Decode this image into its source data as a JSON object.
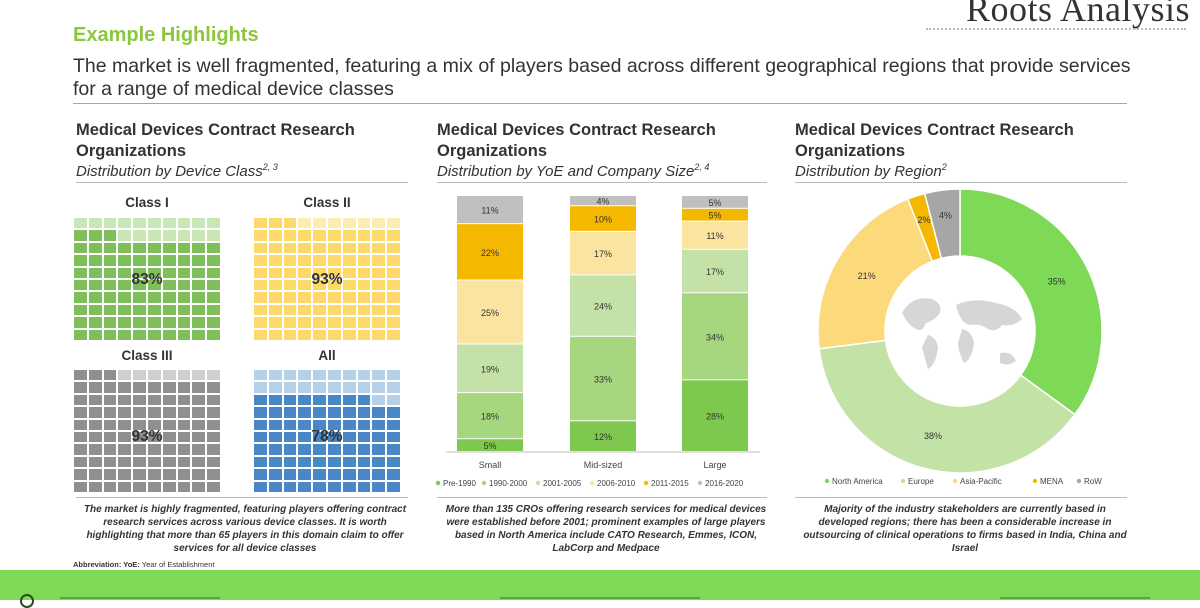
{
  "logo": {
    "text": "Roots Analysis",
    "tagline": ""
  },
  "header": {
    "heading": "Example Highlights",
    "subtitle": "The market is well fragmented, featuring a mix of players based across different geographical regions that provide services for a range of medical device classes"
  },
  "panels": [
    {
      "title": "Medical Devices Contract Research Organizations",
      "caption": "Distribution by Device Class",
      "caption_sup": "2, 3",
      "footnote": "The market is highly fragmented, featuring players offering contract research services across various device classes. It is worth highlighting that more than 65 players in this domain claim to offer services for all device classes"
    },
    {
      "title": "Medical Devices Contract Research Organizations",
      "caption": "Distribution by YoE and Company Size",
      "caption_sup": "2, 4",
      "footnote": "More than 135 CROs offering research services for medical devices were established before 2001; prominent examples of large players based in North America include CATO Research, Emmes, ICON, LabCorp and Medpace"
    },
    {
      "title": "Medical Devices Contract Research Organizations",
      "caption": "Distribution by Region",
      "caption_sup": "2",
      "footnote": "Majority of the industry stakeholders are currently based in developed regions; there has been a considerable increase in outsourcing of clinical operations to firms based in India, China and Israel"
    }
  ],
  "abbreviation": {
    "label": "Abbreviation: YoE:",
    "text": "Year of Establishment"
  },
  "colors": {
    "green": "#8cc63f",
    "grid_green": "#7fbf5a",
    "grid_yellow": "#fdd86a",
    "grid_gray": "#8f8f8f",
    "grid_blue": "#4a87c8",
    "band": "#7ed957"
  },
  "chart_data": [
    {
      "type": "waffle",
      "title": "Distribution by Device Class",
      "series": [
        {
          "name": "Class I",
          "value": 83,
          "label": "83%",
          "color": "#7fbf5a",
          "light": "#c9e6b6"
        },
        {
          "name": "Class II",
          "value": 93,
          "label": "93%",
          "color": "#fdd86a",
          "light": "#fdebb3"
        },
        {
          "name": "Class III",
          "value": 93,
          "label": "93%",
          "color": "#8f8f8f",
          "light": "#cfcfcf"
        },
        {
          "name": "All",
          "value": 78,
          "label": "78%",
          "color": "#4a87c8",
          "light": "#b7d0ea"
        }
      ]
    },
    {
      "type": "bar",
      "stacked": true,
      "title": "Distribution by YoE and Company Size",
      "categories": [
        "Small",
        "Mid-sized",
        "Large"
      ],
      "series": [
        {
          "name": "Pre-1990",
          "color": "#7ec850",
          "values": [
            5,
            12,
            28
          ]
        },
        {
          "name": "1990-2000",
          "color": "#a6d67e",
          "values": [
            18,
            33,
            34
          ]
        },
        {
          "name": "2001-2005",
          "color": "#c4e2a8",
          "values": [
            19,
            24,
            17
          ]
        },
        {
          "name": "2006-2010",
          "color": "#fbe3a0",
          "values": [
            25,
            17,
            11
          ]
        },
        {
          "name": "2011-2015",
          "color": "#f5b800",
          "values": [
            22,
            10,
            5
          ]
        },
        {
          "name": "2016-2020",
          "color": "#bfbfbf",
          "values": [
            11,
            4,
            5
          ]
        }
      ],
      "ylim": [
        0,
        100
      ]
    },
    {
      "type": "pie",
      "donut": true,
      "title": "Distribution by Region",
      "slices": [
        {
          "name": "North America",
          "value": 35,
          "label": "35%",
          "color": "#7ed957"
        },
        {
          "name": "Europe",
          "value": 38,
          "label": "38%",
          "color": "#c3e3a6"
        },
        {
          "name": "Asia-Pacific",
          "value": 21,
          "label": "21%",
          "color": "#fcd97a"
        },
        {
          "name": "MENA",
          "value": 2,
          "label": "2%",
          "color": "#f5b800"
        },
        {
          "name": "RoW",
          "value": 4,
          "label": "4%",
          "color": "#a6a6a6"
        }
      ]
    }
  ]
}
